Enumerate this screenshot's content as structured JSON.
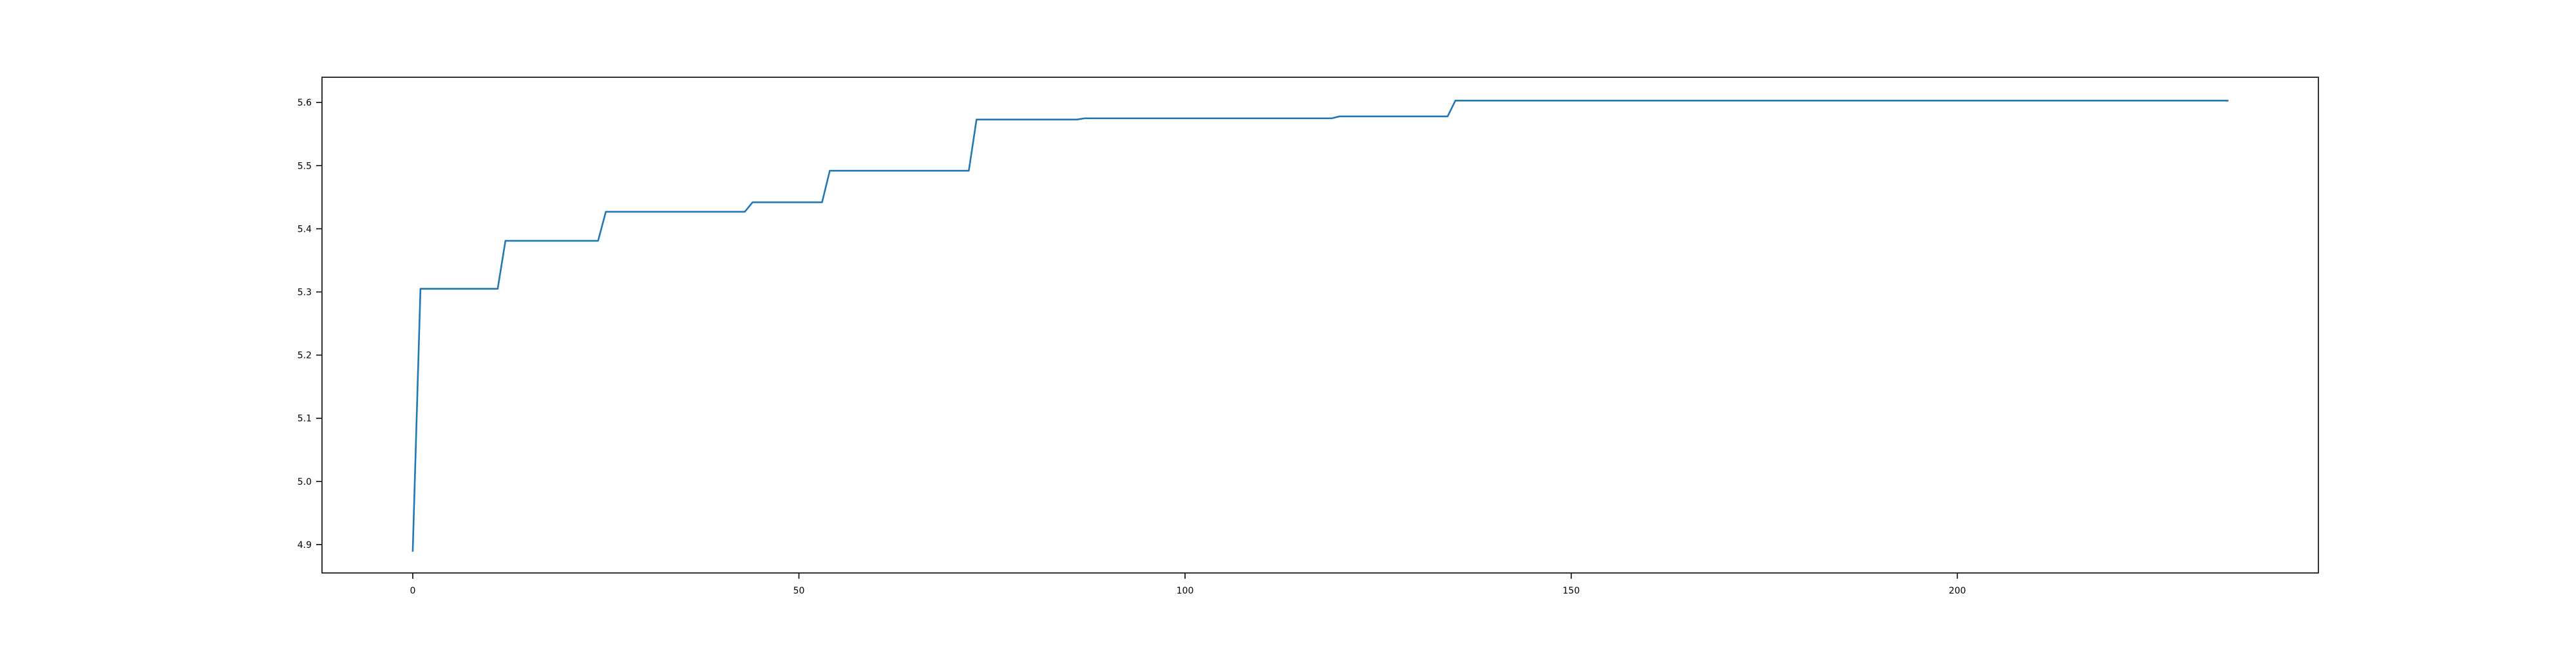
{
  "chart_data": {
    "type": "line",
    "title": "",
    "xlabel": "",
    "ylabel": "",
    "xlim": [
      -11.75,
      246.75
    ],
    "ylim": [
      4.855,
      5.64
    ],
    "x_ticks": [
      0,
      50,
      100,
      150,
      200
    ],
    "y_ticks": [
      4.9,
      5.0,
      5.1,
      5.2,
      5.3,
      5.4,
      5.5,
      5.6
    ],
    "x_tick_labels": [
      "0",
      "50",
      "100",
      "150",
      "200"
    ],
    "y_tick_labels": [
      "4.9",
      "5.0",
      "5.1",
      "5.2",
      "5.3",
      "5.4",
      "5.5",
      "5.6"
    ],
    "grid": false,
    "legend": "none",
    "series": [
      {
        "color": "#1f77b4",
        "x": [
          0,
          1,
          11,
          12,
          24,
          25,
          43,
          44,
          53,
          54,
          72,
          73,
          86,
          87,
          119,
          120,
          134,
          135,
          235
        ],
        "y": [
          4.89,
          5.305,
          5.305,
          5.381,
          5.381,
          5.427,
          5.427,
          5.442,
          5.442,
          5.492,
          5.492,
          5.573,
          5.573,
          5.575,
          5.575,
          5.578,
          5.578,
          5.603,
          5.603
        ]
      }
    ]
  }
}
